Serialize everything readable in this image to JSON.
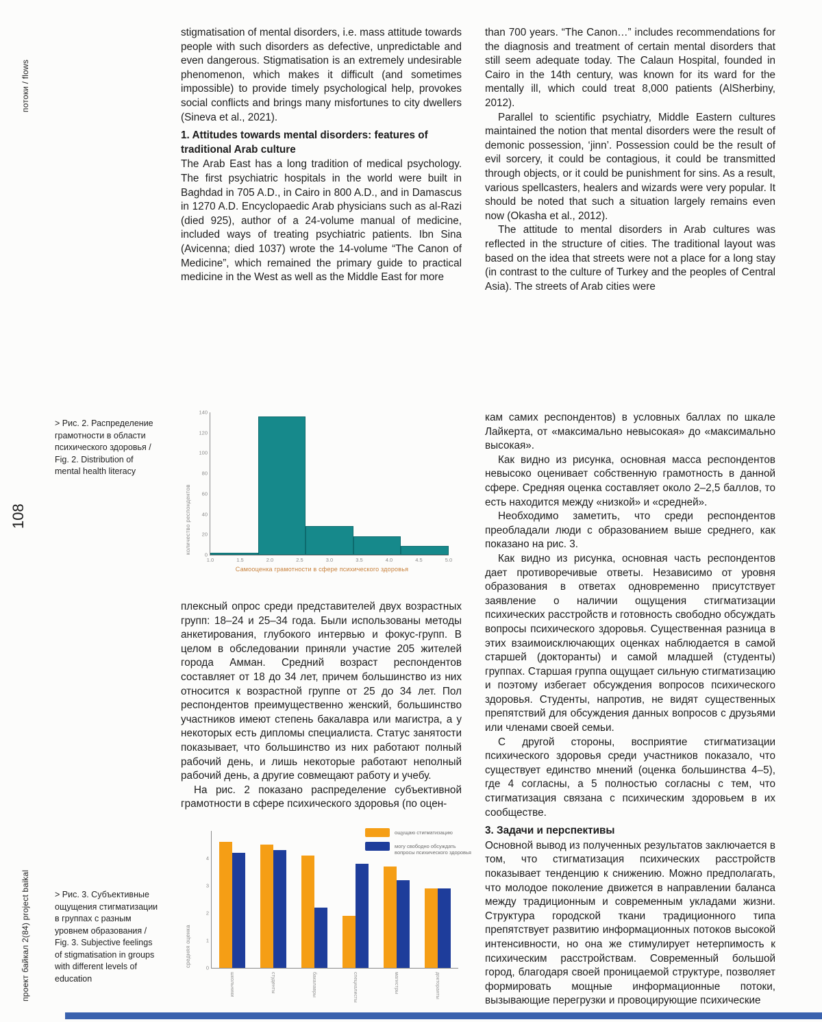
{
  "page": {
    "edge_top_label": "потоки / flows",
    "edge_bottom_label": "проект байкал 2(84) project baikal",
    "page_number": "108"
  },
  "colors": {
    "teal_bar": "#16898b",
    "orange_bar": "#f59e15",
    "blue_bar": "#1e3d9b",
    "fig2_xlabel": "#c8803a",
    "footer_bar": "#3a62ae"
  },
  "captions": {
    "fig2": ">  Рис. 2. Распределение грамотности в области психического здоровья / Fig. 2. Distribution of mental health literacy",
    "fig3": ">  Рис. 3. Субъективные ощущения стигматизации в группах с разным уровнем образования / Fig. 3. Subjective feelings of stigmatisation in groups with different levels of education"
  },
  "left_column": {
    "p1": "stigmatisation of mental disorders, i.e. mass attitude towards people with such disorders as defective, unpredictable and even dangerous. Stigmatisation is an extremely undesirable phenomenon, which makes it difficult (and sometimes impossible) to provide timely psychological help, provokes social conflicts and brings many misfortunes to city dwellers (Sineva et al., 2021).",
    "heading1": "1. Attitudes towards mental disorders: features of traditional Arab culture",
    "p2": "The Arab East has a long tradition of medical psychology. The first psychiatric hospitals in the world were built in Baghdad in 705 A.D., in Cairo in 800 A.D., and in Damascus in 1270 A.D. Encyclopaedic Arab physicians such as al-Razi (died 925), author of a 24-volume manual of medicine, included ways of treating psychiatric patients. Ibn Sina (Avicenna; died 1037) wrote the 14-volume “The Canon of Medicine”, which remained the primary guide to practical medicine in the West as well as the Middle East for more",
    "p3": "плексный опрос среди представителей двух возрастных групп: 18–24 и 25–34 года. Были использованы методы анкетирования, глубокого интервью и фокус-групп. В целом в обследовании приняли участие 205 жителей города Амман. Средний возраст респондентов составляет от 18 до 34 лет, причем большинство из них относится к возрастной группе от 25 до 34 лет. Пол респондентов преимущественно женский, большинство участников имеют степень бакалавра или магистра, а у некоторых есть дипломы специалиста. Статус занятости показывает, что большинство из них работают полный рабочий день, и лишь некоторые работают неполный рабочий день, а другие совмещают работу и учебу.",
    "p4": "На рис. 2 показано распределение субъективной грамотности в сфере психического здоровья (по оцен-"
  },
  "right_column": {
    "p1": "than 700 years. “The Canon…” includes recommendations for the diagnosis and treatment of certain mental disorders that still seem adequate today. The Calaun Hospital, founded in Cairo in the 14th century, was known for its ward for the mentally ill, which could treat 8,000 patients (AlSherbiny, 2012).",
    "p2": "Parallel to scientific psychiatry, Middle Eastern cultures maintained the notion that mental disorders were the result of demonic possession, ‘jinn’. Possession could be the result of evil sorcery, it could be contagious, it could be transmitted through objects, or it could be punishment for sins. As a result, various spellcasters, healers and wizards were very popular. It should be noted that such a situation largely remains even now (Okasha et al., 2012).",
    "p3": "The attitude to mental disorders in Arab cultures was reflected in the structure of cities. The traditional layout was based on the idea that streets were not a place for a long stay (in contrast to the culture of Turkey and the peoples of Central Asia). The streets of Arab cities were",
    "p4": "кам самих респондентов) в условных баллах по шкале Лайкерта, от «максимально невысокая» до «максимально высокая».",
    "p5": "Как видно из рисунка, основная масса респондентов невысоко оценивает собственную грамотность в данной сфере. Средняя оценка составляет около 2–2,5 баллов, то есть находится между «низкой» и «средней».",
    "p6": "Необходимо заметить, что среди респондентов преобладали люди с образованием выше среднего, как показано на рис. 3.",
    "p7": "Как видно из рисунка, основная часть респондентов дает противоречивые ответы. Независимо от уровня образования в ответах одновременно присутствует заявление о наличии ощущения стигматизации психических расстройств и готовность свободно обсуждать вопросы психического здоровья. Существенная разница в этих взаимоисключающих оценках наблюдается в самой старшей (докторанты) и самой младшей (студенты) группах. Старшая группа ощущает сильную стигматизацию и поэтому избегает обсуждения вопросов психического здоровья. Студенты, напротив, не видят существенных препятствий для обсуждения данных вопросов с друзьями или членами своей семьи.",
    "p8": "С другой стороны, восприятие стигматизации психического здоровья среди участников показало, что существует единство мнений (оценка большинства 4–5), где 4 согласны, а 5 полностью согласны с тем, что стигматизация связана с психическим здоровьем в их сообществе.",
    "heading3": "3. Задачи и перспективы",
    "p9": "Основной вывод из полученных результатов заключается в том, что стигматизация психических расстройств показывает тенденцию к снижению. Можно предполагать, что молодое поколение движется в направлении баланса между традиционным и современным укладами жизни. Структура городской ткани традиционного типа препятствует развитию информационных потоков высокой интенсивности, но она же стимулирует нетерпимость к психическим расстройствам. Современный большой город, благодаря своей проницаемой структуре, позволяет формировать мощные информационные потоки, вызывающие перегрузки и провоцирующие психические"
  },
  "chart_data": [
    {
      "type": "bar",
      "subtype": "histogram",
      "title": "",
      "bin_edges": [
        1.0,
        1.8,
        2.6,
        3.4,
        4.2,
        5.0
      ],
      "values": [
        2,
        136,
        28,
        18,
        9
      ],
      "xticks": [
        "1.0",
        "1.5",
        "2.0",
        "2.5",
        "3.0",
        "3.5",
        "4.0",
        "4.5",
        "5.0"
      ],
      "yticks": [
        0,
        20,
        40,
        60,
        80,
        100,
        120,
        140
      ],
      "xlim": [
        1.0,
        5.0
      ],
      "ylim": [
        0,
        140
      ],
      "xlabel": "Самооценка грамотности в сфере психического здоровья",
      "ylabel": "количество респондентов",
      "bar_color": "#16898b",
      "grid": false,
      "legend_position": "none"
    },
    {
      "type": "bar",
      "subtype": "grouped",
      "title": "",
      "categories": [
        "школьники",
        "студенты",
        "бакалавры",
        "специалисты",
        "магистры",
        "докторанты"
      ],
      "series": [
        {
          "name": "ощущаю стигматизацию",
          "color": "#f59e15",
          "values": [
            4.6,
            4.5,
            4.1,
            1.9,
            3.7,
            2.9
          ]
        },
        {
          "name": "могу свободно обсуждать\nвопросы психического здоровья",
          "color": "#1e3d9b",
          "values": [
            4.2,
            4.3,
            2.2,
            3.8,
            3.2,
            2.9
          ]
        }
      ],
      "yticks": [
        0,
        1,
        2,
        3,
        4
      ],
      "ylim": [
        0,
        5
      ],
      "ylabel": "средняя оценка",
      "grid": false,
      "legend_position": "top-right"
    }
  ]
}
